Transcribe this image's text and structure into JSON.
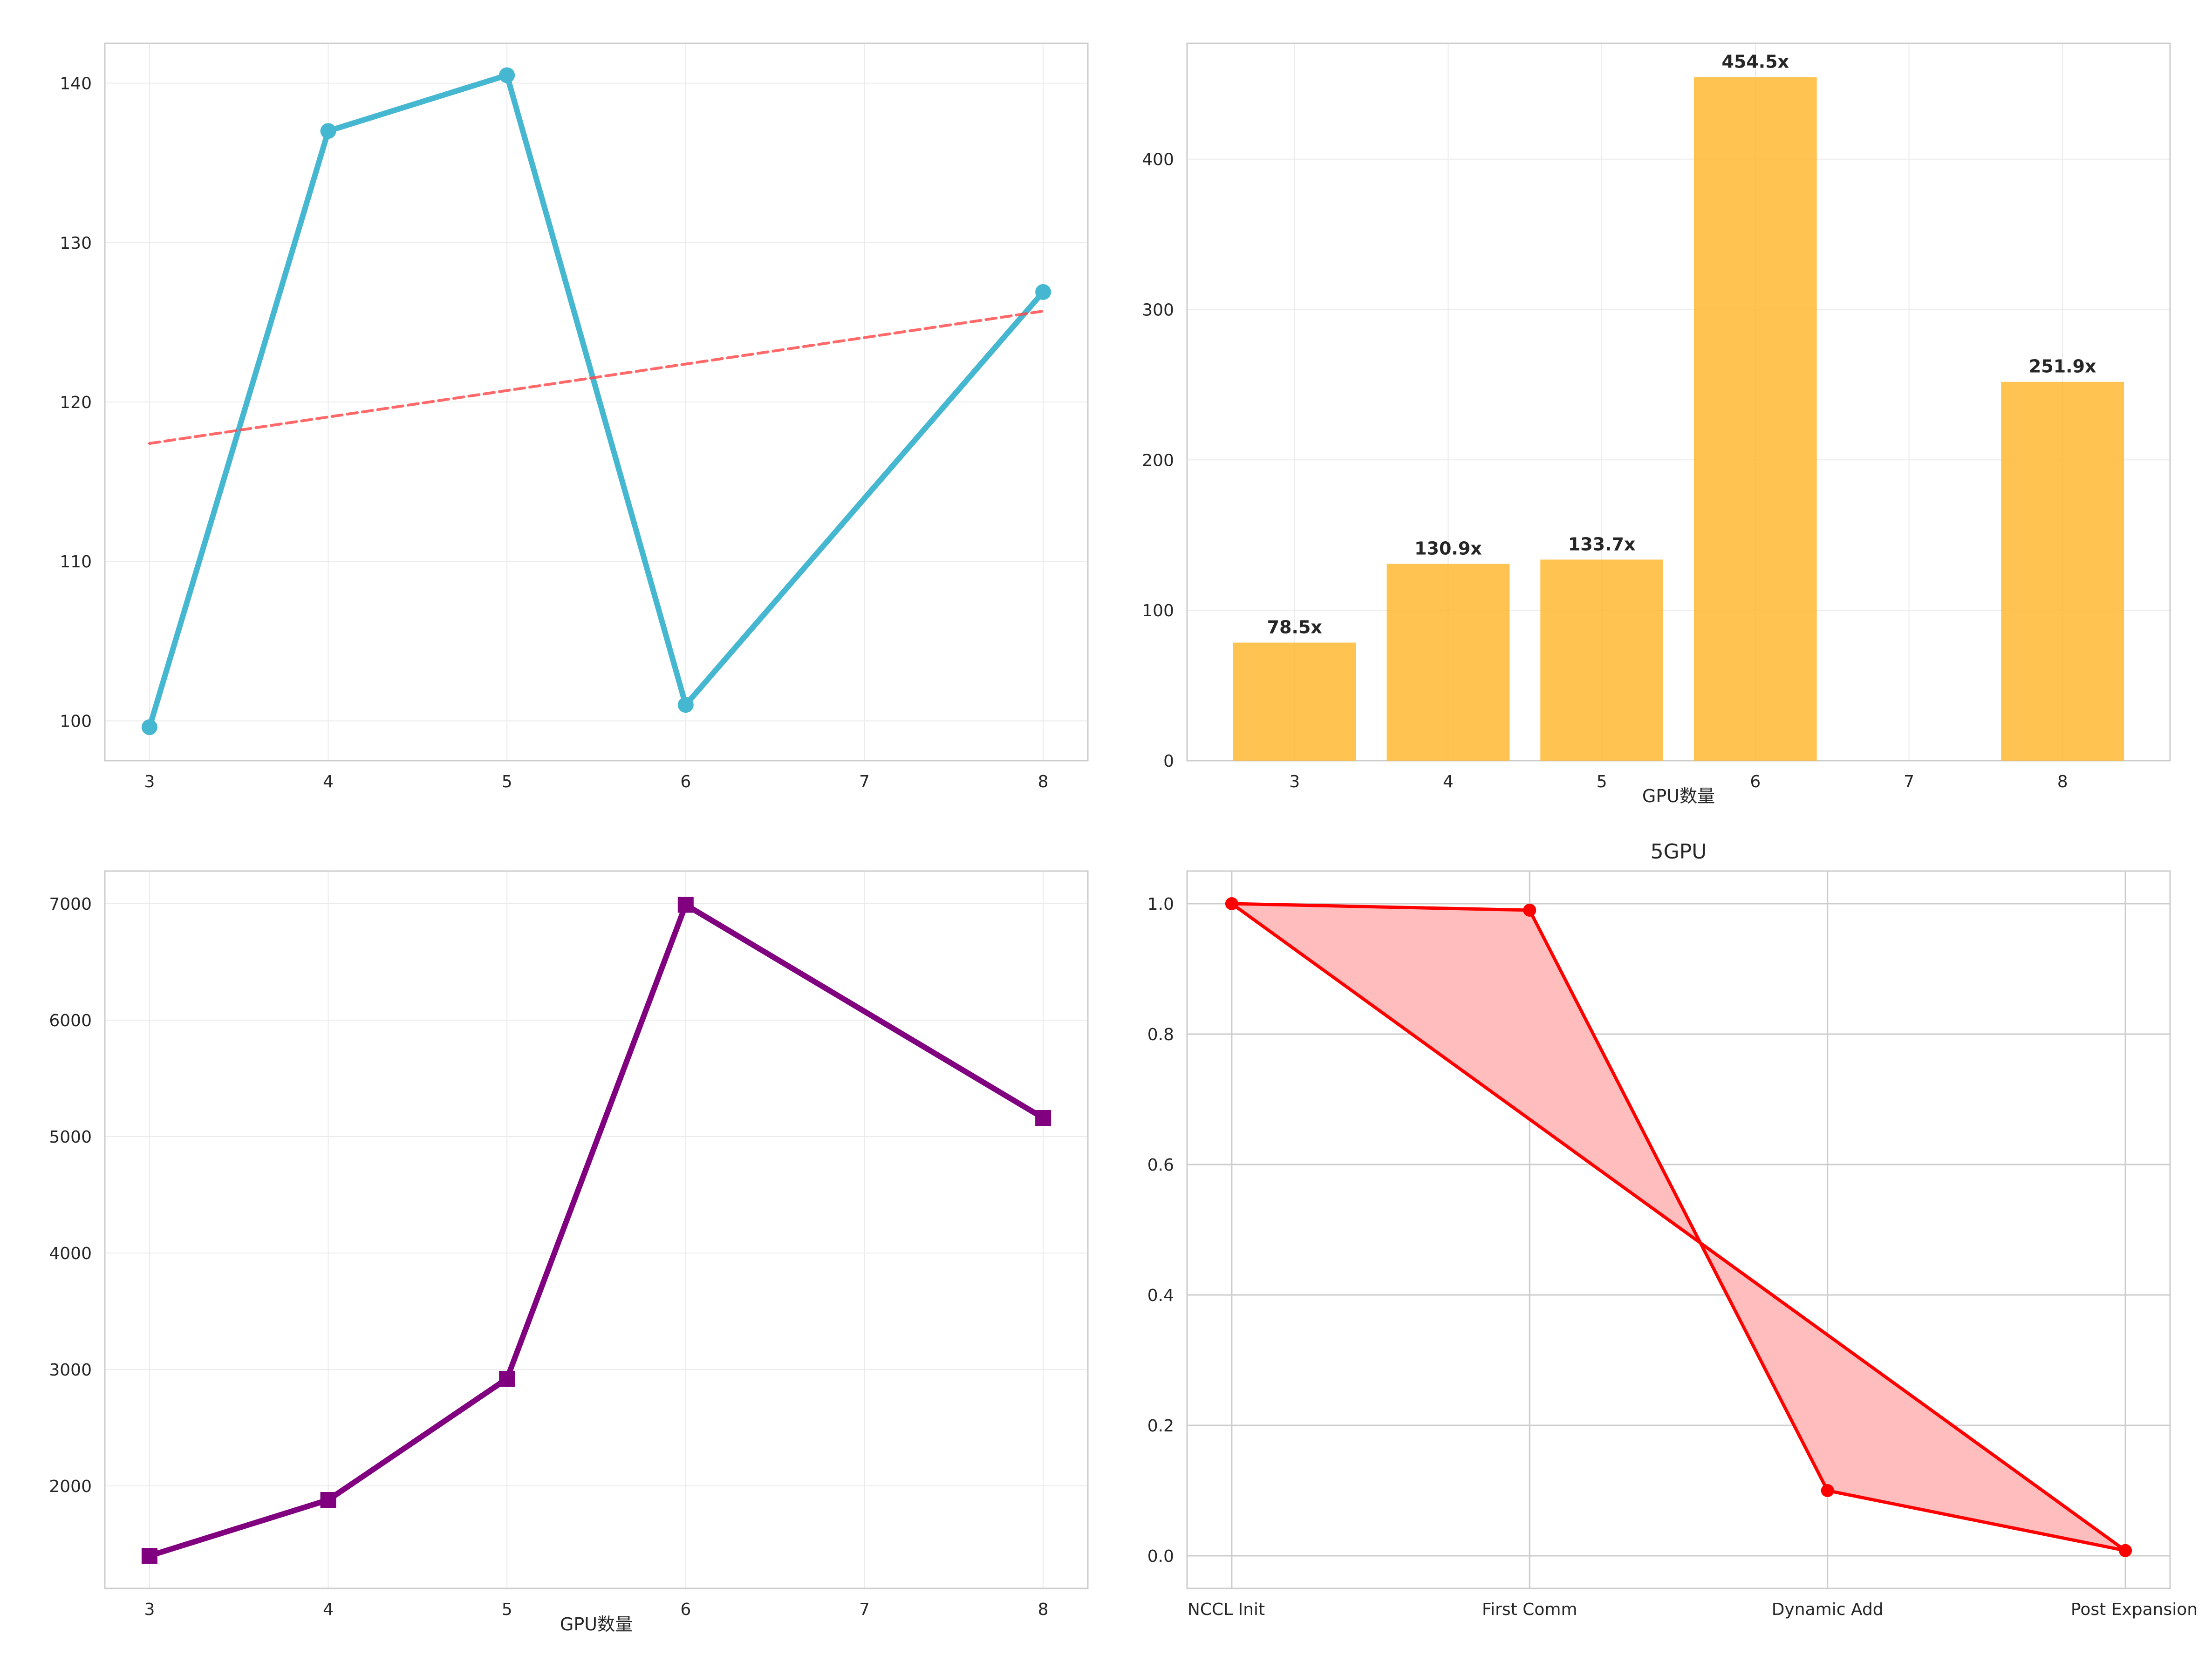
{
  "chart_data": [
    {
      "id": "p1",
      "type": "line",
      "title": "",
      "xlabel": "",
      "ylabel": "",
      "x": [
        3,
        4,
        5,
        6,
        8
      ],
      "x_ticks": [
        3,
        4,
        5,
        6,
        7,
        8
      ],
      "xlim": [
        2.75,
        8.25
      ],
      "ylim": [
        97.5,
        142.5
      ],
      "y_ticks": [
        100,
        110,
        120,
        130,
        140
      ],
      "grid": true,
      "series": [
        {
          "values": [
            99.6,
            137.0,
            140.5,
            101.0,
            126.9
          ],
          "color": "#45b7d1",
          "style": "solid",
          "marker": "circle"
        },
        {
          "x": [
            3,
            8
          ],
          "values": [
            117.4,
            125.7
          ],
          "color": "#ff4444",
          "style": "dashed"
        }
      ]
    },
    {
      "id": "p2",
      "type": "bar",
      "title": "",
      "xlabel": "GPU数量",
      "ylabel": "",
      "categories": [
        3,
        4,
        5,
        6,
        8
      ],
      "values": [
        78.5,
        130.9,
        133.7,
        454.5,
        251.9
      ],
      "value_labels": [
        "78.5x",
        "130.9x",
        "133.7x",
        "454.5x",
        "251.9x"
      ],
      "x_ticks": [
        3,
        4,
        5,
        6,
        7,
        8
      ],
      "xlim": [
        2.3,
        8.7
      ],
      "ylim": [
        0,
        477
      ],
      "y_ticks": [
        0,
        100,
        200,
        300,
        400
      ],
      "color": "#ffb833",
      "grid": true
    },
    {
      "id": "p3",
      "type": "line",
      "title": "",
      "xlabel": "GPU数量",
      "ylabel": "",
      "x": [
        3,
        4,
        5,
        6,
        8
      ],
      "x_ticks": [
        3,
        4,
        5,
        6,
        7,
        8
      ],
      "xlim": [
        2.75,
        8.25
      ],
      "ylim": [
        1120,
        7280
      ],
      "y_ticks": [
        2000,
        3000,
        4000,
        5000,
        6000,
        7000
      ],
      "grid": true,
      "series": [
        {
          "values": [
            1400,
            1880,
            2920,
            6990,
            5160
          ],
          "color": "#800080",
          "style": "solid",
          "marker": "square"
        }
      ]
    },
    {
      "id": "p4",
      "type": "area",
      "title": "5GPU",
      "xlabel": "",
      "ylabel": "",
      "categories": [
        "NCCL Init",
        "First Comm",
        "Dynamic Add",
        "Post Expansion"
      ],
      "values": [
        1.0,
        0.99,
        0.1,
        0.008
      ],
      "xlim": [
        -0.15,
        3.15
      ],
      "ylim": [
        -0.05,
        1.05
      ],
      "y_ticks": [
        0.0,
        0.2,
        0.4,
        0.6,
        0.8,
        1.0
      ],
      "y_tick_labels": [
        "0.0",
        "0.2",
        "0.4",
        "0.6",
        "0.8",
        "1.0"
      ],
      "color": "#ff0000",
      "fill_color": "#ffbdbd",
      "grid": true
    }
  ]
}
